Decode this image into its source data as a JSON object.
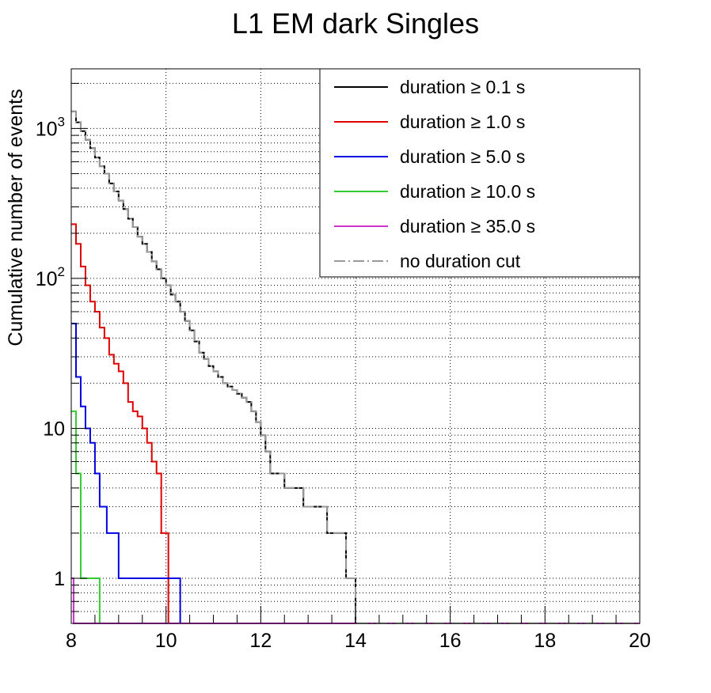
{
  "chart_data": {
    "type": "line",
    "title": "L1 EM dark Singles",
    "xlabel": "",
    "ylabel": "Cumulative number of events",
    "xlim": [
      8,
      20
    ],
    "ylim": [
      0.5,
      2500
    ],
    "yscale": "log",
    "grid": true,
    "legend_position": "top-right",
    "x_ticks": [
      "8",
      "10",
      "12",
      "14",
      "16",
      "18",
      "20"
    ],
    "y_ticks": [
      {
        "base": "10",
        "exp": "3",
        "value": 1000
      },
      {
        "base": "10",
        "exp": "2",
        "value": 100
      },
      {
        "base": "10",
        "exp": "",
        "value": 10
      },
      {
        "base": "1",
        "exp": "",
        "value": 1
      }
    ],
    "series": [
      {
        "name": "duration ≥ 0.1 s",
        "color": "#000000",
        "dash": "solid",
        "edges": [
          8,
          8.1,
          8.2,
          8.3,
          8.4,
          8.5,
          8.6,
          8.7,
          8.8,
          8.9,
          9.0,
          9.1,
          9.2,
          9.3,
          9.4,
          9.5,
          9.6,
          9.7,
          9.8,
          9.9,
          10.0,
          10.1,
          10.2,
          10.3,
          10.4,
          10.5,
          10.6,
          10.7,
          10.8,
          10.9,
          11.0,
          11.1,
          11.2,
          11.3,
          11.4,
          11.5,
          11.6,
          11.7,
          11.8,
          11.9,
          12.0,
          12.1,
          12.2,
          12.5,
          12.9,
          13.4,
          13.8,
          14.0
        ],
        "values": [
          1300,
          1100,
          960,
          840,
          740,
          640,
          560,
          500,
          430,
          380,
          330,
          290,
          250,
          220,
          190,
          170,
          150,
          130,
          115,
          100,
          90,
          78,
          70,
          60,
          52,
          45,
          38,
          32,
          29,
          26,
          24,
          22,
          20,
          19,
          18,
          17,
          16,
          15,
          13,
          11,
          9,
          7,
          5,
          4,
          3,
          2,
          1
        ]
      },
      {
        "name": "duration ≥ 1.0 s",
        "color": "#e00000",
        "dash": "solid",
        "edges": [
          8,
          8.1,
          8.2,
          8.3,
          8.4,
          8.5,
          8.6,
          8.7,
          8.8,
          8.9,
          9.0,
          9.1,
          9.2,
          9.3,
          9.4,
          9.5,
          9.6,
          9.7,
          9.8,
          9.9,
          10.05
        ],
        "values": [
          230,
          170,
          120,
          90,
          70,
          60,
          47,
          40,
          31,
          27,
          24,
          20,
          15,
          13,
          12,
          10,
          8,
          6,
          5,
          2
        ]
      },
      {
        "name": "duration ≥ 5.0 s",
        "color": "#0000e0",
        "dash": "solid",
        "edges": [
          8,
          8.1,
          8.2,
          8.3,
          8.4,
          8.5,
          8.6,
          8.75,
          9.0,
          9.3,
          10.3
        ],
        "values": [
          50,
          22,
          14,
          10,
          8,
          5,
          3,
          2,
          1,
          1
        ]
      },
      {
        "name": "duration ≥ 10.0 s",
        "color": "#33cc33",
        "dash": "solid",
        "edges": [
          8,
          8.1,
          8.2,
          8.6
        ],
        "values": [
          13,
          5,
          1
        ]
      },
      {
        "name": "duration ≥ 35.0 s",
        "color": "#cc33cc",
        "dash": "solid",
        "edges": [
          8,
          8.05
        ],
        "values": [
          1
        ]
      },
      {
        "name": "no duration cut",
        "color": "#999999",
        "dash": "dashdot",
        "edges": [
          8,
          8.1,
          8.2,
          8.3,
          8.4,
          8.5,
          8.6,
          8.7,
          8.8,
          8.9,
          9.0,
          9.1,
          9.2,
          9.3,
          9.4,
          9.5,
          9.6,
          9.7,
          9.8,
          9.9,
          10.0,
          10.1,
          10.2,
          10.3,
          10.4,
          10.5,
          10.6,
          10.7,
          10.8,
          10.9,
          11.0,
          11.1,
          11.2,
          11.3,
          11.4,
          11.5,
          11.6,
          11.7,
          11.8,
          11.9,
          12.0,
          12.1,
          12.2,
          12.5,
          12.9,
          13.4,
          13.8,
          14.0
        ],
        "values": [
          1300,
          1100,
          960,
          840,
          740,
          640,
          560,
          500,
          430,
          380,
          330,
          290,
          250,
          220,
          190,
          170,
          150,
          130,
          115,
          100,
          90,
          78,
          70,
          60,
          52,
          45,
          38,
          32,
          29,
          26,
          24,
          22,
          20,
          19,
          18,
          17,
          16,
          15,
          13,
          11,
          9,
          7,
          5,
          4,
          3,
          2,
          1
        ]
      }
    ]
  }
}
